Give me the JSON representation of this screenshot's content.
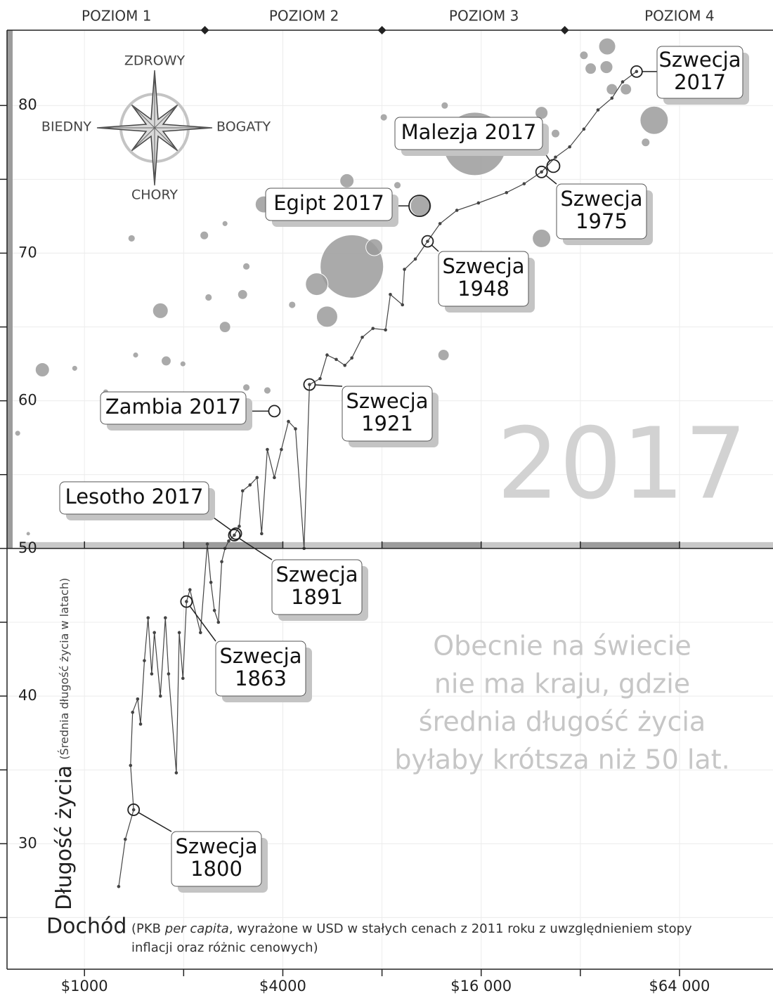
{
  "chart_data": {
    "type": "bubble",
    "xscale": "log",
    "xlim": [
      582,
      123000
    ],
    "ylim": [
      21.5,
      85.1
    ],
    "xticks": [
      {
        "value": 1000,
        "label": "$1000"
      },
      {
        "value": 4000,
        "label": "$4000"
      },
      {
        "value": 16000,
        "label": "$16 000"
      },
      {
        "value": 64000,
        "label": "$64 000"
      }
    ],
    "xticks_minor": [
      2000,
      8000,
      32000
    ],
    "yticks": [
      30,
      40,
      50,
      60,
      70,
      80
    ],
    "yticks_minor": [
      25,
      35,
      45,
      55,
      65,
      75
    ],
    "grid": true,
    "threshold": 50,
    "levels": {
      "labels": [
        "POZIOM 1",
        "POZIOM 2",
        "POZIOM 3",
        "POZIOM 4"
      ],
      "bounds": [
        2320,
        8000,
        28700
      ]
    },
    "year_label": "2017",
    "message": [
      "Obecnie na świecie",
      "nie ma kraju, gdzie",
      "średnia długość życia",
      "byłaby krótsza niż 50 lat."
    ],
    "y_title": "Długość życia",
    "y_subtitle": "(Średnia długość życia w latach)",
    "x_title": "Dochód",
    "x_note": {
      "line1": [
        "(PKB ",
        "per capita",
        ", wyrażone w USD w stałych cenach z 2011 roku z uwzględnieniem stopy"
      ],
      "line2": "inflacji oraz różnic cenowych)"
    },
    "compass": {
      "north": "ZDROWY",
      "south": "CHORY",
      "west": "BIEDNY",
      "east": "BOGATY"
    },
    "bubbles": {
      "color": "#9b9b9b",
      "x": [
        6480,
        15300,
        53600,
        5070,
        5450,
        10500,
        38600,
        24400,
        3500,
        7580,
        1700,
        745,
        6260,
        24400,
        38400,
        12300,
        2670,
        34400,
        39900,
        44000,
        3020,
        1770,
        1720,
        2310,
        32800,
        50500,
        26900,
        1390,
        3100,
        2380,
        4270,
        3590,
        3100,
        8100,
        12400,
        8910,
        934,
        627,
        1430,
        1990,
        2670,
        1160,
        675
      ],
      "y": [
        69.1,
        77.4,
        79.0,
        67.9,
        65.7,
        73.2,
        84.0,
        71.0,
        73.3,
        70.4,
        66.1,
        62.1,
        74.9,
        79.5,
        82.6,
        63.1,
        65.0,
        82.5,
        81.1,
        81.1,
        67.2,
        62.7,
        59.5,
        71.2,
        83.4,
        77.5,
        78.1,
        71.0,
        69.1,
        67.0,
        66.5,
        60.7,
        60.9,
        79.2,
        80.0,
        74.6,
        62.2,
        57.8,
        63.1,
        62.5,
        72.0,
        60.6,
        51.0
      ],
      "size": [
        1340,
        1340,
        264,
        169,
        149,
        149,
        95,
        112,
        95,
        95,
        80,
        66,
        66,
        54,
        54,
        42,
        42,
        42,
        42,
        42,
        32,
        32,
        32,
        24,
        24,
        24,
        24,
        17,
        17,
        17,
        17,
        17,
        17,
        17,
        17,
        17,
        11,
        11,
        11,
        11,
        11,
        11,
        6
      ]
    },
    "trajectory": {
      "color": "#444444",
      "x": [
        1270,
        1330,
        1410,
        1380,
        1400,
        1450,
        1480,
        1520,
        1560,
        1600,
        1630,
        1700,
        1760,
        1800,
        1900,
        1940,
        1990,
        2040,
        2090,
        2250,
        2360,
        2420,
        2480,
        2550,
        2610,
        2670,
        2740,
        2850,
        2950,
        3020,
        3180,
        3340,
        3450,
        3590,
        3770,
        3960,
        4160,
        4370,
        4640,
        4820,
        5190,
        5450,
        5810,
        6170,
        6480,
        6970,
        7510,
        8200,
        8480,
        9230,
        9360,
        10100,
        11000,
        12000,
        13500,
        15700,
        19100,
        21600,
        24400,
        26900,
        29700,
        32800,
        36200,
        39900,
        43000,
        47400
      ],
      "y": [
        27.1,
        30.3,
        32.3,
        35.3,
        38.9,
        39.8,
        38.1,
        42.4,
        45.3,
        41.5,
        44.3,
        40.0,
        45.3,
        41.5,
        34.8,
        44.3,
        41.2,
        46.4,
        47.2,
        44.3,
        50.3,
        47.7,
        45.8,
        45.0,
        49.1,
        50.0,
        50.5,
        50.9,
        51.5,
        53.9,
        54.3,
        54.8,
        51.0,
        56.7,
        54.8,
        56.7,
        58.6,
        58.1,
        50.0,
        61.1,
        61.5,
        63.1,
        62.8,
        62.4,
        62.9,
        64.3,
        64.9,
        64.8,
        67.2,
        66.5,
        68.9,
        69.6,
        70.8,
        72.0,
        72.9,
        73.4,
        74.1,
        74.7,
        75.5,
        76.5,
        77.2,
        78.4,
        79.7,
        80.5,
        81.6,
        82.3
      ]
    },
    "annotations": [
      {
        "lines": [
          "Szwecja",
          "2017"
        ],
        "x": 47400,
        "y": 82.3
      },
      {
        "lines": [
          "Malezja 2017"
        ],
        "x": 26500,
        "y": 75.9
      },
      {
        "lines": [
          "Egipt 2017"
        ],
        "x": 10400,
        "y": 73.2
      },
      {
        "lines": [
          "Szwecja",
          "1975"
        ],
        "x": 24400,
        "y": 75.5
      },
      {
        "lines": [
          "Szwecja",
          "1948"
        ],
        "x": 11000,
        "y": 70.8
      },
      {
        "lines": [
          "Zambia 2017"
        ],
        "x": 3770,
        "y": 59.3
      },
      {
        "lines": [
          "Szwecja",
          "1921"
        ],
        "x": 4820,
        "y": 61.1
      },
      {
        "lines": [
          "Lesotho 2017"
        ],
        "x": 2880,
        "y": 51.0
      },
      {
        "lines": [
          "Szwecja",
          "1891"
        ],
        "x": 2850,
        "y": 50.9
      },
      {
        "lines": [
          "Szwecja",
          "1863"
        ],
        "x": 2040,
        "y": 46.4
      },
      {
        "lines": [
          "Szwecja",
          "1800"
        ],
        "x": 1410,
        "y": 32.3
      }
    ]
  }
}
